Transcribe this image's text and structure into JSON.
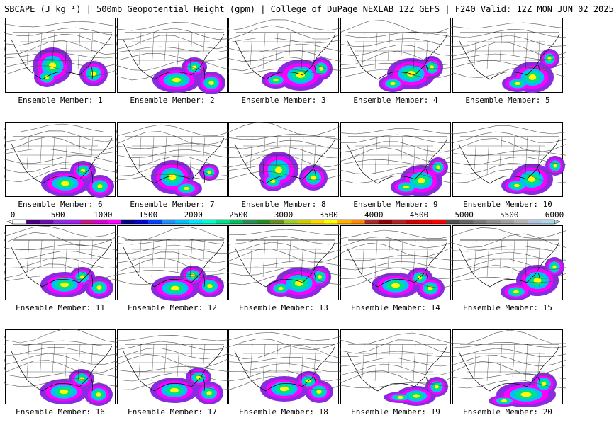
{
  "title": "SBCAPE (J kg⁻¹) | 500mb Geopotential Height (gpm) | College of DuPage NEXLAB 12Z GEFS | F240 Valid: 12Z MON JUN 02 2025",
  "members": [
    {
      "label": "Ensemble Member: 1",
      "cape_focus": "southern-plains"
    },
    {
      "label": "Ensemble Member: 2",
      "cape_focus": "gulf-coast"
    },
    {
      "label": "Ensemble Member: 3",
      "cape_focus": "gulf-southeast"
    },
    {
      "label": "Ensemble Member: 4",
      "cape_focus": "gulf-southeast"
    },
    {
      "label": "Ensemble Member: 5",
      "cape_focus": "southeast"
    },
    {
      "label": "Ensemble Member: 6",
      "cape_focus": "gulf-coast"
    },
    {
      "label": "Ensemble Member: 7",
      "cape_focus": "texas-gulf"
    },
    {
      "label": "Ensemble Member: 8",
      "cape_focus": "southern-plains"
    },
    {
      "label": "Ensemble Member: 9",
      "cape_focus": "southeast"
    },
    {
      "label": "Ensemble Member: 10",
      "cape_focus": "southeast"
    },
    {
      "label": "Ensemble Member: 11",
      "cape_focus": "gulf-coast"
    },
    {
      "label": "Ensemble Member: 12",
      "cape_focus": "gulf-coast"
    },
    {
      "label": "Ensemble Member: 13",
      "cape_focus": "gulf-southeast"
    },
    {
      "label": "Ensemble Member: 14",
      "cape_focus": "gulf-coast"
    },
    {
      "label": "Ensemble Member: 15",
      "cape_focus": "southeast"
    },
    {
      "label": "Ensemble Member: 16",
      "cape_focus": "gulf-coast"
    },
    {
      "label": "Ensemble Member: 17",
      "cape_focus": "gulf-coast"
    },
    {
      "label": "Ensemble Member: 18",
      "cape_focus": "gulf-coast"
    },
    {
      "label": "Ensemble Member: 19",
      "cape_focus": "florida"
    },
    {
      "label": "Ensemble Member: 20",
      "cape_focus": "gulf-caribbean"
    }
  ],
  "colorbar": {
    "ticks": [
      "0",
      "500",
      "1000",
      "1500",
      "2000",
      "2500",
      "3000",
      "3500",
      "4000",
      "4500",
      "5000",
      "5500",
      "6000"
    ],
    "colors": [
      "#ffffff",
      "#4b0082",
      "#6a0dad",
      "#8a2be2",
      "#a020f0",
      "#c71585",
      "#d400d4",
      "#ff00ff",
      "#000080",
      "#0000cd",
      "#0040ff",
      "#1e90ff",
      "#00bfff",
      "#00e5ff",
      "#00ffcc",
      "#00e08c",
      "#00c060",
      "#2e8b57",
      "#228b22",
      "#6b8e23",
      "#9acd32",
      "#cccc00",
      "#ffd700",
      "#ffff00",
      "#ffb000",
      "#ff8c00",
      "#a52a2a",
      "#8b0000",
      "#b22222",
      "#cc0000",
      "#e00000",
      "#ff0000",
      "#505050",
      "#646464",
      "#787878",
      "#8c8c8c",
      "#a0a0a0",
      "#b4b4b4",
      "#b0c4de",
      "#add8e6"
    ]
  }
}
